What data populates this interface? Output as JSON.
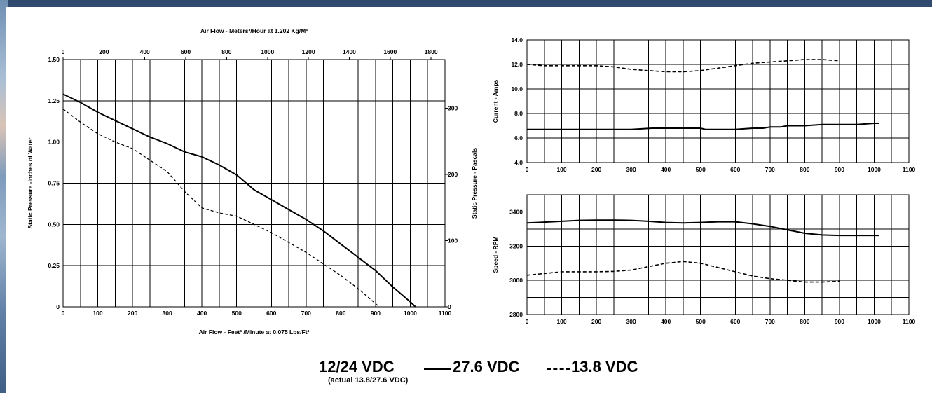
{
  "chart_data": [
    {
      "id": "pressure",
      "type": "line",
      "xlabel": "Air Flow - Feet³ /Minute at 0.075 Lbs/Ft³",
      "x2label": "Air Flow - Meters³/Hour at 1.202 Kg/M³",
      "ylabel": "Static Pressure -Inches of Water",
      "y2label": "Static Pressure - Pascals",
      "xlim": [
        0,
        1100
      ],
      "ylim": [
        0,
        1.5
      ],
      "x2lim": [
        0,
        1868
      ],
      "y2lim": [
        0,
        373.5
      ],
      "x_ticks": [
        "0",
        "100",
        "200",
        "300",
        "400",
        "500",
        "600",
        "700",
        "800",
        "900",
        "1000",
        "1100"
      ],
      "y_ticks": [
        "0",
        "0.25",
        "0.50",
        "0.75",
        "1.00",
        "1.25",
        "1.50"
      ],
      "x2_ticks": [
        "0",
        "200",
        "400",
        "600",
        "800",
        "1000",
        "1200",
        "1400",
        "1600",
        "1800"
      ],
      "y2_ticks": [
        "0",
        "100",
        "200",
        "300"
      ],
      "series": [
        {
          "style": "solid",
          "x": [
            0,
            50,
            100,
            150,
            200,
            250,
            300,
            350,
            400,
            450,
            500,
            550,
            600,
            650,
            700,
            750,
            800,
            850,
            900,
            950,
            1000,
            1015
          ],
          "y": [
            1.29,
            1.24,
            1.18,
            1.13,
            1.08,
            1.03,
            0.99,
            0.94,
            0.91,
            0.86,
            0.8,
            0.71,
            0.65,
            0.59,
            0.53,
            0.46,
            0.38,
            0.3,
            0.22,
            0.12,
            0.03,
            0.0
          ]
        },
        {
          "style": "dashed",
          "x": [
            0,
            50,
            100,
            150,
            200,
            250,
            300,
            350,
            400,
            450,
            500,
            550,
            600,
            650,
            700,
            750,
            800,
            850,
            900,
            910
          ],
          "y": [
            1.2,
            1.12,
            1.05,
            1.0,
            0.96,
            0.89,
            0.82,
            0.7,
            0.6,
            0.57,
            0.55,
            0.5,
            0.45,
            0.39,
            0.33,
            0.26,
            0.19,
            0.11,
            0.02,
            0.0
          ]
        }
      ]
    },
    {
      "id": "current",
      "type": "line",
      "ylabel": "Current - Amps",
      "xlim": [
        0,
        1100
      ],
      "ylim": [
        4,
        14
      ],
      "x_ticks": [
        "0",
        "100",
        "200",
        "300",
        "400",
        "500",
        "600",
        "700",
        "800",
        "900",
        "1000",
        "1100"
      ],
      "y_ticks": [
        "4.0",
        "6.0",
        "8.0",
        "10.0",
        "12.0",
        "14.0"
      ],
      "series": [
        {
          "style": "solid",
          "x": [
            0,
            100,
            200,
            300,
            360,
            400,
            500,
            515,
            550,
            600,
            650,
            680,
            700,
            730,
            750,
            800,
            850,
            900,
            950,
            1000,
            1015
          ],
          "y": [
            6.7,
            6.7,
            6.7,
            6.7,
            6.8,
            6.8,
            6.8,
            6.7,
            6.7,
            6.7,
            6.8,
            6.8,
            6.9,
            6.9,
            7.0,
            7.0,
            7.1,
            7.1,
            7.1,
            7.2,
            7.2
          ]
        },
        {
          "style": "dashed",
          "x": [
            0,
            50,
            100,
            200,
            250,
            300,
            350,
            400,
            450,
            500,
            550,
            600,
            650,
            700,
            750,
            800,
            850,
            900
          ],
          "y": [
            12.0,
            11.9,
            11.9,
            11.9,
            11.8,
            11.6,
            11.5,
            11.4,
            11.4,
            11.5,
            11.7,
            11.9,
            12.1,
            12.2,
            12.3,
            12.4,
            12.4,
            12.3
          ]
        }
      ]
    },
    {
      "id": "speed",
      "type": "line",
      "ylabel": "Speed - RPM",
      "xlim": [
        0,
        1100
      ],
      "ylim": [
        2800,
        3500
      ],
      "x_ticks": [
        "0",
        "100",
        "200",
        "300",
        "400",
        "500",
        "600",
        "700",
        "800",
        "900",
        "1000",
        "1100"
      ],
      "y_ticks": [
        "2800",
        "3000",
        "3200",
        "3400"
      ],
      "series": [
        {
          "style": "solid",
          "x": [
            0,
            50,
            100,
            150,
            200,
            250,
            300,
            350,
            400,
            450,
            500,
            550,
            600,
            650,
            700,
            750,
            800,
            850,
            900,
            950,
            1000,
            1015
          ],
          "y": [
            3335,
            3340,
            3345,
            3350,
            3352,
            3352,
            3350,
            3345,
            3338,
            3335,
            3338,
            3342,
            3342,
            3330,
            3315,
            3295,
            3275,
            3265,
            3262,
            3262,
            3262,
            3262
          ]
        },
        {
          "style": "dashed",
          "x": [
            0,
            50,
            100,
            150,
            200,
            250,
            300,
            350,
            400,
            450,
            500,
            550,
            600,
            650,
            700,
            750,
            800,
            850,
            900
          ],
          "y": [
            3030,
            3040,
            3050,
            3050,
            3050,
            3052,
            3060,
            3080,
            3100,
            3110,
            3100,
            3075,
            3050,
            3025,
            3010,
            3000,
            2990,
            2990,
            2995
          ]
        }
      ]
    }
  ],
  "legend": {
    "voltage_label": "12/24 VDC",
    "voltage_note": "(actual 13.8/27.6 VDC)",
    "solid_label": "27.6 VDC",
    "dashed_label": "13.8 VDC"
  }
}
